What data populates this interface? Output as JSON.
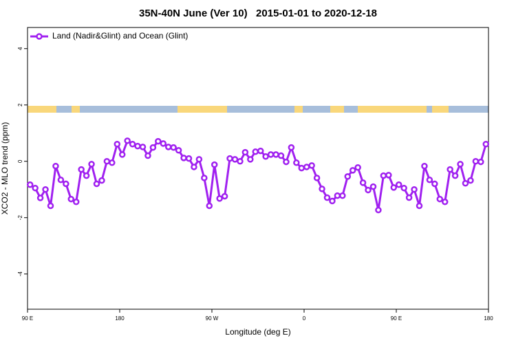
{
  "chart_data": {
    "type": "line",
    "title": "35N-40N June (Ver 10)   2015-01-01 to 2020-12-18",
    "x_label": "Longitude (deg E)",
    "y_label": "XCO2 - MLO trend (ppm)",
    "xlim": [
      90,
      540
    ],
    "ylim": [
      -5.25,
      4.75
    ],
    "xticks": [
      {
        "value": 90,
        "label": "90 E"
      },
      180,
      {
        "value": 270,
        "label": "90 W"
      },
      {
        "value": 360,
        "label": "0"
      },
      {
        "value": 450,
        "label": "90 E"
      },
      {
        "value": 540,
        "label": "180"
      }
    ],
    "yticks": [
      -4,
      -2,
      0,
      2,
      4
    ],
    "legend": "top-left",
    "x": [
      92.5,
      97.5,
      102.5,
      107.5,
      112.5,
      117.5,
      122.5,
      127.5,
      132.5,
      137.5,
      142.5,
      147.5,
      152.5,
      157.5,
      162.5,
      167.5,
      172.5,
      177.5,
      182.5,
      187.5,
      192.5,
      197.5,
      202.5,
      207.5,
      212.5,
      217.5,
      222.5,
      227.5,
      232.5,
      237.5,
      242.5,
      247.5,
      252.5,
      257.5,
      262.5,
      267.5,
      272.5,
      277.5,
      282.5,
      287.5,
      292.5,
      297.5,
      302.5,
      307.5,
      312.5,
      317.5,
      322.5,
      327.5,
      332.5,
      337.5,
      342.5,
      347.5,
      352.5,
      357.5,
      362.5,
      367.5,
      372.5,
      377.5,
      382.5,
      387.5,
      392.5,
      397.5,
      402.5,
      407.5,
      412.5,
      417.5,
      422.5,
      427.5,
      432.5,
      437.5,
      442.5,
      447.5,
      452.5,
      457.5,
      462.5,
      467.5,
      472.5,
      477.5,
      482.5,
      487.5,
      492.5,
      497.5,
      502.5,
      507.5,
      512.5,
      517.5,
      522.5,
      527.5,
      532.5,
      537.5
    ],
    "series": [
      {
        "name": "Land (Nadir&Glint) and Ocean (Glint)",
        "color": "#a020f0",
        "values": [
          -0.83,
          -0.95,
          -1.3,
          -1.0,
          -1.58,
          -0.17,
          -0.66,
          -0.8,
          -1.34,
          -1.44,
          -0.29,
          -0.51,
          -0.1,
          -0.8,
          -0.68,
          0.0,
          -0.05,
          0.61,
          0.24,
          0.73,
          0.61,
          0.54,
          0.51,
          0.2,
          0.49,
          0.71,
          0.63,
          0.51,
          0.49,
          0.39,
          0.12,
          0.1,
          -0.2,
          0.07,
          -0.59,
          -1.58,
          -0.12,
          -1.32,
          -1.24,
          0.1,
          0.07,
          0.0,
          0.32,
          0.07,
          0.34,
          0.37,
          0.17,
          0.24,
          0.24,
          0.2,
          -0.02,
          0.49,
          -0.05,
          -0.24,
          -0.2,
          -0.15,
          -0.59,
          -0.98,
          -1.29,
          -1.41,
          -1.22,
          -1.22,
          -0.54,
          -0.32,
          -0.22,
          -0.76,
          -1.02,
          -0.9,
          -1.73,
          -0.51,
          -0.49,
          -0.93,
          -0.83,
          -0.95,
          -1.29,
          -1.0,
          -1.58,
          -0.17,
          -0.66,
          -0.8,
          -1.34,
          -1.44,
          -0.29,
          -0.51,
          -0.1,
          -0.78,
          -0.68,
          0.0,
          -0.02,
          0.61
        ]
      }
    ]
  }
}
